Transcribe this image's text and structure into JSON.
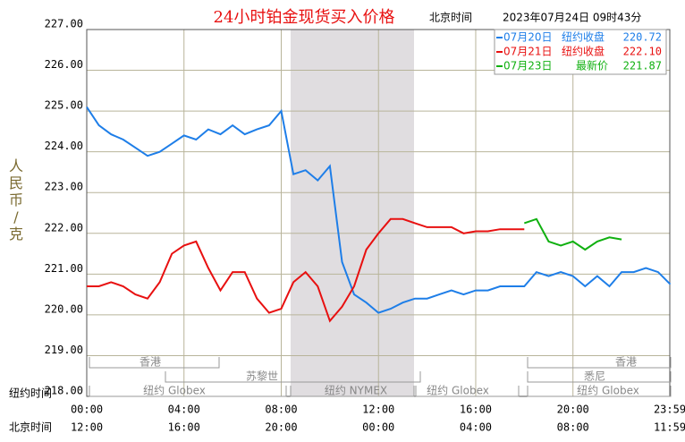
{
  "chart_data": {
    "type": "line",
    "title": "24小时铂金现货买入价格",
    "subtitle": "北京时间",
    "timestamp": "2023年07月24日 09时43分",
    "y_label": "人民币/克",
    "x_row_label": "纽约时间",
    "x2_row_label": "北京时间",
    "x": [
      0,
      0.5,
      1,
      1.5,
      2,
      2.5,
      3,
      3.5,
      4,
      4.5,
      5,
      5.5,
      6,
      6.5,
      7,
      7.5,
      8,
      8.5,
      9,
      9.5,
      10,
      10.5,
      11,
      11.5,
      12,
      12.5,
      13,
      13.5,
      14,
      14.5,
      15,
      15.5,
      16,
      16.5,
      17,
      17.5,
      18,
      18.5,
      19,
      19.5,
      20,
      20.5,
      21,
      21.5,
      22,
      22.5,
      23,
      23.5,
      24
    ],
    "xlim": [
      0,
      23.983
    ],
    "xticks": [
      {
        "value": 0,
        "label": "00:00"
      },
      {
        "value": 4,
        "label": "04:00"
      },
      {
        "value": 8,
        "label": "08:00"
      },
      {
        "value": 12,
        "label": "12:00"
      },
      {
        "value": 16,
        "label": "16:00"
      },
      {
        "value": 20,
        "label": "20:00"
      },
      {
        "value": 23.983,
        "label": "23:59"
      }
    ],
    "x2ticks": [
      {
        "value": 0,
        "label": "12:00"
      },
      {
        "value": 4,
        "label": "16:00"
      },
      {
        "value": 8,
        "label": "20:00"
      },
      {
        "value": 12,
        "label": "00:00"
      },
      {
        "value": 16,
        "label": "04:00"
      },
      {
        "value": 20,
        "label": "08:00"
      },
      {
        "value": 23.983,
        "label": "11:59"
      }
    ],
    "ylim": [
      218,
      227
    ],
    "yticks": [
      {
        "value": 218,
        "label": "218.00"
      },
      {
        "value": 219,
        "label": "219.00"
      },
      {
        "value": 220,
        "label": "220.00"
      },
      {
        "value": 221,
        "label": "221.00"
      },
      {
        "value": 222,
        "label": "222.00"
      },
      {
        "value": 223,
        "label": "223.00"
      },
      {
        "value": 224,
        "label": "224.00"
      },
      {
        "value": 225,
        "label": "225.00"
      },
      {
        "value": 226,
        "label": "226.00"
      },
      {
        "value": 227,
        "label": "227.00"
      }
    ],
    "grid": true,
    "series": [
      {
        "name": "07月20日",
        "legend_text": "纽约收盘",
        "legend_value": 220.72,
        "color": "#1e7ee8",
        "values": [
          225.1,
          224.65,
          224.43,
          224.3,
          224.1,
          223.9,
          224.0,
          224.2,
          224.4,
          224.3,
          224.55,
          224.43,
          224.65,
          224.43,
          224.55,
          224.65,
          225.0,
          223.45,
          223.55,
          223.3,
          223.65,
          221.3,
          220.5,
          220.3,
          220.05,
          220.15,
          220.3,
          220.4,
          220.4,
          220.5,
          220.6,
          220.5,
          220.6,
          220.6,
          220.7,
          220.7,
          220.7,
          221.05,
          220.95,
          221.05,
          220.95,
          220.7,
          220.95,
          220.7,
          221.05,
          221.05,
          221.15,
          221.05,
          220.75
        ]
      },
      {
        "name": "07月21日",
        "legend_text": "纽约收盘",
        "legend_value": {
          "value": 222.1,
          "label": "222.10"
        },
        "color": "#e81010",
        "values": [
          220.7,
          220.7,
          220.8,
          220.7,
          220.5,
          220.4,
          220.8,
          221.5,
          221.7,
          221.8,
          221.15,
          220.6,
          221.05,
          221.05,
          220.4,
          220.05,
          220.15,
          220.8,
          221.05,
          220.7,
          219.85,
          220.2,
          220.7,
          221.6,
          222.0,
          222.35,
          222.35,
          222.25,
          222.15,
          222.15,
          222.15,
          222.0,
          222.05,
          222.05,
          222.1,
          222.1,
          222.1,
          null,
          null,
          null,
          null,
          null,
          null,
          null,
          null,
          null,
          null,
          null,
          null
        ]
      },
      {
        "name": "07月23日",
        "legend_text": "最新价",
        "legend_value": 221.87,
        "color": "#10b010",
        "values": [
          null,
          null,
          null,
          null,
          null,
          null,
          null,
          null,
          null,
          null,
          null,
          null,
          null,
          null,
          null,
          null,
          null,
          null,
          null,
          null,
          null,
          null,
          null,
          null,
          null,
          null,
          null,
          null,
          null,
          null,
          null,
          null,
          null,
          null,
          null,
          null,
          222.25,
          222.35,
          221.8,
          221.7,
          221.8,
          221.6,
          221.8,
          221.9,
          221.85,
          null,
          null,
          null,
          null
        ]
      }
    ],
    "sessions": [
      "香港",
      "苏黎世",
      "纽约 Globex",
      "纽约 NYMEX",
      "纽约 Globex",
      "香港",
      "悉尼",
      "纽约 Globex"
    ]
  }
}
